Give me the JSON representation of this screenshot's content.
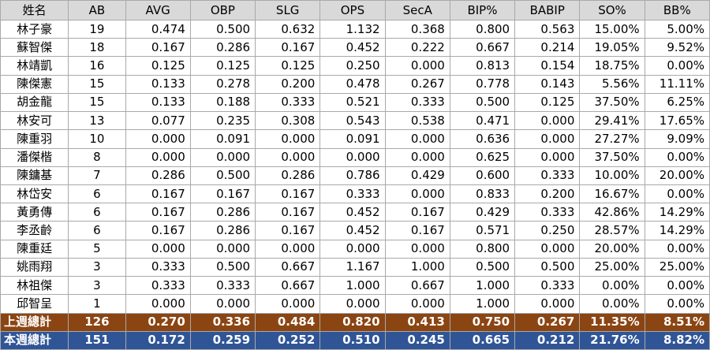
{
  "headers": [
    "姓名",
    "AB",
    "AVG",
    "OBP",
    "SLG",
    "OPS",
    "SecA",
    "BIP%",
    "BABIP",
    "SO%",
    "BB%"
  ],
  "rows": [
    [
      "林子豪",
      "19",
      "0.474",
      "0.500",
      "0.632",
      "1.132",
      "0.368",
      "0.800",
      "0.563",
      "15.00%",
      "5.00%"
    ],
    [
      "蘇智傑",
      "18",
      "0.167",
      "0.286",
      "0.167",
      "0.452",
      "0.222",
      "0.667",
      "0.214",
      "19.05%",
      "9.52%"
    ],
    [
      "林靖凱",
      "16",
      "0.125",
      "0.125",
      "0.125",
      "0.250",
      "0.000",
      "0.813",
      "0.154",
      "18.75%",
      "0.00%"
    ],
    [
      "陳傑憲",
      "15",
      "0.133",
      "0.278",
      "0.200",
      "0.478",
      "0.267",
      "0.778",
      "0.143",
      "5.56%",
      "11.11%"
    ],
    [
      "胡金龍",
      "15",
      "0.133",
      "0.188",
      "0.333",
      "0.521",
      "0.333",
      "0.500",
      "0.125",
      "37.50%",
      "6.25%"
    ],
    [
      "林安可",
      "13",
      "0.077",
      "0.235",
      "0.308",
      "0.543",
      "0.538",
      "0.471",
      "0.000",
      "29.41%",
      "17.65%"
    ],
    [
      "陳重羽",
      "10",
      "0.000",
      "0.091",
      "0.000",
      "0.091",
      "0.000",
      "0.636",
      "0.000",
      "27.27%",
      "9.09%"
    ],
    [
      "潘傑楷",
      "8",
      "0.000",
      "0.000",
      "0.000",
      "0.000",
      "0.000",
      "0.625",
      "0.000",
      "37.50%",
      "0.00%"
    ],
    [
      "陳鏞基",
      "7",
      "0.286",
      "0.500",
      "0.286",
      "0.786",
      "0.429",
      "0.600",
      "0.333",
      "10.00%",
      "20.00%"
    ],
    [
      "林岱安",
      "6",
      "0.167",
      "0.167",
      "0.167",
      "0.333",
      "0.000",
      "0.833",
      "0.200",
      "16.67%",
      "0.00%"
    ],
    [
      "黃勇傳",
      "6",
      "0.167",
      "0.286",
      "0.167",
      "0.452",
      "0.167",
      "0.429",
      "0.333",
      "42.86%",
      "14.29%"
    ],
    [
      "李丞齡",
      "6",
      "0.167",
      "0.286",
      "0.167",
      "0.452",
      "0.167",
      "0.571",
      "0.250",
      "28.57%",
      "14.29%"
    ],
    [
      "陳重廷",
      "5",
      "0.000",
      "0.000",
      "0.000",
      "0.000",
      "0.000",
      "0.800",
      "0.000",
      "20.00%",
      "0.00%"
    ],
    [
      "姚雨翔",
      "3",
      "0.333",
      "0.500",
      "0.667",
      "1.167",
      "1.000",
      "0.500",
      "0.500",
      "25.00%",
      "25.00%"
    ],
    [
      "林祖傑",
      "3",
      "0.333",
      "0.333",
      "0.667",
      "1.000",
      "0.667",
      "1.000",
      "0.333",
      "0.00%",
      "0.00%"
    ],
    [
      "邱智呈",
      "1",
      "0.000",
      "0.000",
      "0.000",
      "0.000",
      "0.000",
      "1.000",
      "0.000",
      "0.00%",
      "0.00%"
    ]
  ],
  "totals": {
    "last_week": [
      "上週總計",
      "126",
      "0.270",
      "0.336",
      "0.484",
      "0.820",
      "0.413",
      "0.750",
      "0.267",
      "11.35%",
      "8.51%"
    ],
    "this_week": [
      "本週總計",
      "151",
      "0.172",
      "0.259",
      "0.252",
      "0.510",
      "0.245",
      "0.665",
      "0.212",
      "21.76%",
      "8.82%"
    ]
  },
  "colors": {
    "header_bg": "#d9d9d9",
    "last_week_bg": "#8b4513",
    "this_week_bg": "#2f5597",
    "grid": "#a9a9a9"
  }
}
